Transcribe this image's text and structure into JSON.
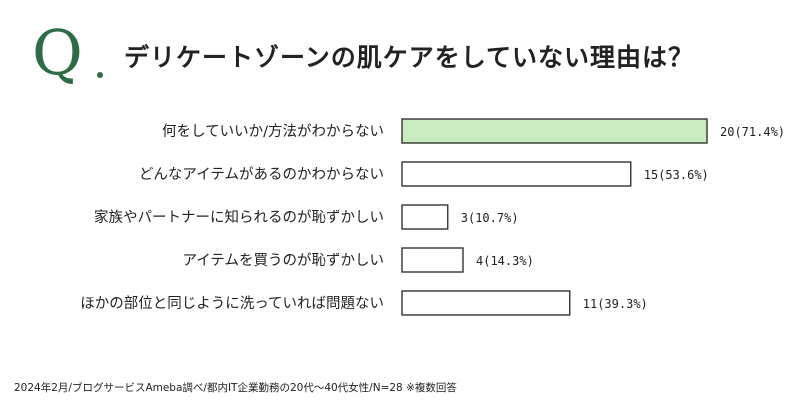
{
  "heading": {
    "q": "Q",
    "title": "デリケートゾーンの肌ケアをしていない理由は？"
  },
  "colors": {
    "accent": "#2f6b45",
    "highlight_bar": "#c8ecc0",
    "bar": "#ffffff",
    "bar_stroke": "#333333"
  },
  "chart_data": {
    "type": "bar",
    "orientation": "horizontal",
    "title": "デリケートゾーンの肌ケアをしていない理由は？",
    "categories": [
      "何をしていいか/方法がわからない",
      "どんなアイテムがあるのかわからない",
      "家族やパートナーに知られるのが恥ずかしい",
      "アイテムを買うのが恥ずかしい",
      "ほかの部位と同じように洗っていれば問題ない"
    ],
    "values": [
      20,
      15,
      3,
      4,
      11
    ],
    "percent_labels": [
      "20(71.4%)",
      "15(53.6%)",
      "3(10.7%)",
      "4(14.3%)",
      "11(39.3%)"
    ],
    "highlight_index": 0,
    "xlim": [
      0,
      20
    ]
  },
  "footnote": "2024年2月/ブログサービスAmeba調べ/都内IT企業勤務の20代〜40代女性/N=28 ※複数回答"
}
